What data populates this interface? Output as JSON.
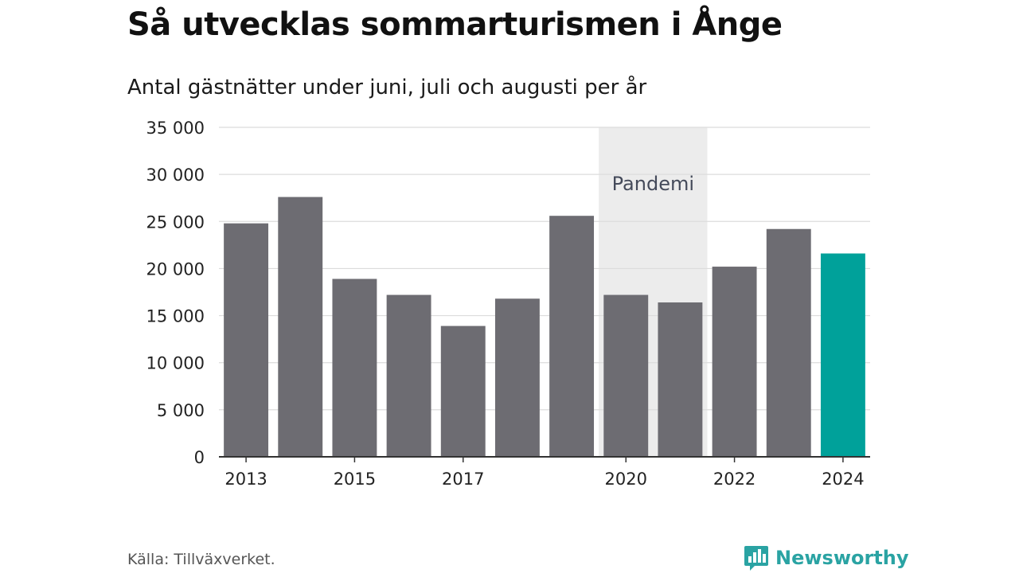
{
  "title": "Så utvecklas sommarturismen i Ånge",
  "subtitle": "Antal gästnätter under juni, juli och augusti per år",
  "source": "Källa: Tillväxverket.",
  "brand": {
    "name": "Newsworthy",
    "logo_icon": "bar-chart-speech-bubble-icon",
    "color": "#2aa3a3"
  },
  "colors": {
    "bar": "#6d6c72",
    "highlight": "#00a19a",
    "pandemic_band": "#ececec",
    "grid": "#dcdcdc",
    "axis": "#333333"
  },
  "chart_data": {
    "type": "bar",
    "title": "Så utvecklas sommarturismen i Ånge",
    "subtitle": "Antal gästnätter under juni, juli och augusti per år",
    "xlabel": "",
    "ylabel": "",
    "categories": [
      "2013",
      "2014",
      "2015",
      "2016",
      "2017",
      "2018",
      "2019",
      "2020",
      "2021",
      "2022",
      "2023",
      "2024"
    ],
    "values": [
      24800,
      27600,
      18900,
      17200,
      13900,
      16800,
      25600,
      17200,
      16400,
      20200,
      24200,
      21600
    ],
    "highlight_category": "2024",
    "x_tick_labels": [
      "2013",
      "2015",
      "2017",
      "2020",
      "2022",
      "2024"
    ],
    "ylim": [
      0,
      35000
    ],
    "y_ticks": [
      0,
      5000,
      10000,
      15000,
      20000,
      25000,
      30000,
      35000
    ],
    "y_tick_labels": [
      "0",
      "5 000",
      "10 000",
      "15 000",
      "20 000",
      "25 000",
      "30 000",
      "35 000"
    ],
    "grid": true,
    "legend": "none",
    "annotations": [
      {
        "text": "Pandemi",
        "from_category": "2020",
        "to_category": "2021"
      }
    ]
  }
}
